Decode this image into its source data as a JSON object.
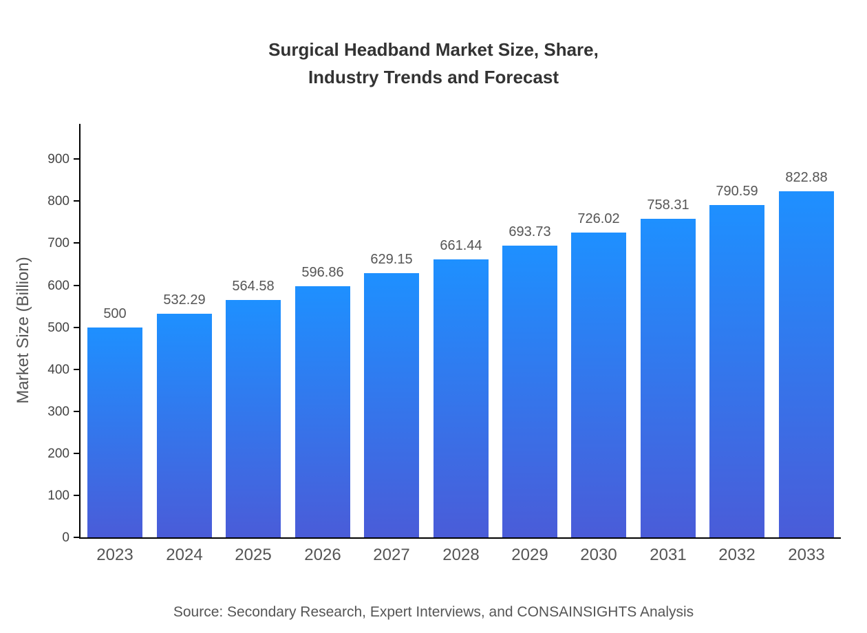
{
  "title": "Surgical Headband Market Size, Share,\nIndustry Trends and Forecast",
  "source": "Source: Secondary Research, Expert Interviews, and CONSAINSIGHTS Analysis",
  "colors": {
    "bar_top": "#1e90ff",
    "bar_bottom": "#4a5cd8",
    "axis": "#000000",
    "title_text": "#333333",
    "label_text": "#555555"
  },
  "chart_data": {
    "type": "bar",
    "title": "Surgical Headband Market Size, Share, Industry Trends and Forecast",
    "categories": [
      "2023",
      "2024",
      "2025",
      "2026",
      "2027",
      "2028",
      "2029",
      "2030",
      "2031",
      "2032",
      "2033"
    ],
    "values": [
      500,
      532.29,
      564.58,
      596.86,
      629.15,
      661.44,
      693.73,
      726.02,
      758.31,
      790.59,
      822.88
    ],
    "value_labels": [
      "500",
      "532.29",
      "564.58",
      "596.86",
      "629.15",
      "661.44",
      "693.73",
      "726.02",
      "758.31",
      "790.59",
      "822.88"
    ],
    "xlabel": "",
    "ylabel": "Market Size (Billion)",
    "ylim": [
      0,
      984
    ],
    "yticks": [
      0,
      100,
      200,
      300,
      400,
      500,
      600,
      700,
      800,
      900
    ],
    "grid": false,
    "legend": false
  }
}
